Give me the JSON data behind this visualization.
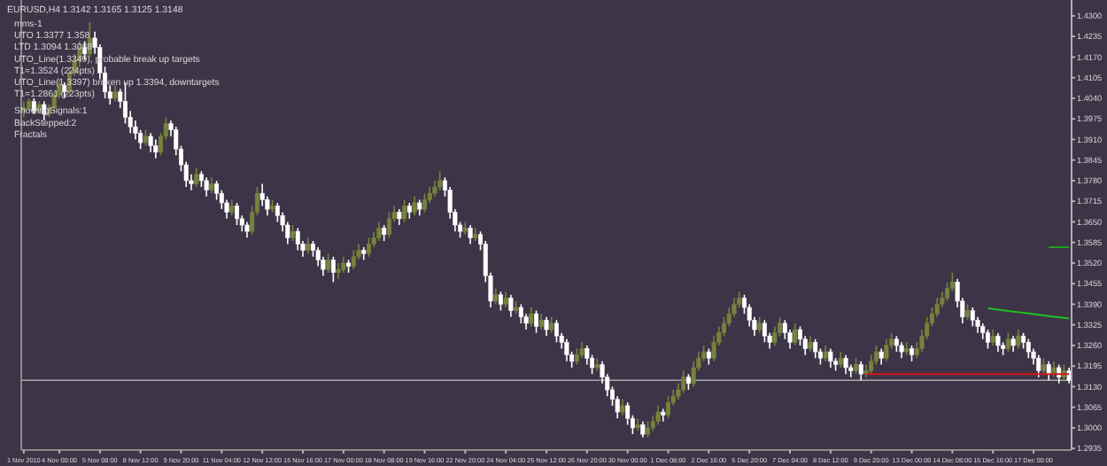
{
  "chart_data": {
    "type": "candlestick",
    "title": "EURUSD,H4 1.3142 1.3165 1.3125 1.3148",
    "annotations": [
      "mms-1",
      "UTO 1.3377 1.358",
      "LTD 1.3094 1.3088",
      "UTO_Line(1.3349), probable break up targets",
      "T1=1.3524 (224pts)",
      "UTO_Line(1.3397) broken up 1.3394, downtargets",
      "T1=1.2861 (223pts)",
      "ShowingSignals:1",
      "BackStepped:2",
      "Fractals"
    ],
    "categories": [
      "1 Nov 2010",
      null,
      null,
      null,
      null,
      null,
      null,
      "4 Nov 00:00",
      null,
      null,
      null,
      null,
      null,
      null,
      null,
      "5 Nov 08:00",
      null,
      null,
      null,
      null,
      null,
      null,
      null,
      "8 Nov 12:00",
      null,
      null,
      null,
      null,
      null,
      null,
      null,
      "9 Nov 20:00",
      null,
      null,
      null,
      null,
      null,
      null,
      null,
      "11 Nov 04:00",
      null,
      null,
      null,
      null,
      null,
      null,
      null,
      "12 Nov 12:00",
      null,
      null,
      null,
      null,
      null,
      null,
      null,
      "15 Nov 16:00",
      null,
      null,
      null,
      null,
      null,
      null,
      null,
      "17 Nov 00:00",
      null,
      null,
      null,
      null,
      null,
      null,
      null,
      "18 Nov 08:00",
      null,
      null,
      null,
      null,
      null,
      null,
      null,
      "19 Nov 16:00",
      null,
      null,
      null,
      null,
      null,
      null,
      null,
      "22 Nov 20:00",
      null,
      null,
      null,
      null,
      null,
      null,
      null,
      "24 Nov 04:00",
      null,
      null,
      null,
      null,
      null,
      null,
      null,
      "25 Nov 12:00",
      null,
      null,
      null,
      null,
      null,
      null,
      null,
      "26 Nov 20:00",
      null,
      null,
      null,
      null,
      null,
      null,
      null,
      "30 Nov 00:00",
      null,
      null,
      null,
      null,
      null,
      null,
      null,
      "1 Dec 08:00",
      null,
      null,
      null,
      null,
      null,
      null,
      null,
      "2 Dec 16:00",
      null,
      null,
      null,
      null,
      null,
      null,
      null,
      "5 Dec 20:00",
      null,
      null,
      null,
      null,
      null,
      null,
      null,
      "7 Dec 04:00",
      null,
      null,
      null,
      null,
      null,
      null,
      null,
      "8 Dec 12:00",
      null,
      null,
      null,
      null,
      null,
      null,
      null,
      "9 Dec 20:00",
      null,
      null,
      null,
      null,
      null,
      null,
      null,
      "13 Dec 00:00",
      null,
      null,
      null,
      null,
      null,
      null,
      null,
      "14 Dec 08:00",
      null,
      null,
      null,
      null,
      null,
      null,
      null,
      "15 Dec 16:00",
      null,
      null,
      null,
      null,
      null,
      null,
      null,
      "17 Dec 00:00",
      null,
      null,
      null,
      null,
      null,
      null,
      null
    ],
    "ohlc": [
      [
        1.4,
        1.403,
        1.398,
        1.401
      ],
      [
        1.401,
        1.404,
        1.4,
        1.403
      ],
      [
        1.403,
        1.404,
        1.399,
        1.4
      ],
      [
        1.4,
        1.403,
        1.399,
        1.402
      ],
      [
        1.402,
        1.403,
        1.397,
        1.399
      ],
      [
        1.399,
        1.402,
        1.398,
        1.401
      ],
      [
        1.401,
        1.406,
        1.4,
        1.405
      ],
      [
        1.405,
        1.41,
        1.404,
        1.408
      ],
      [
        1.408,
        1.409,
        1.404,
        1.406
      ],
      [
        1.406,
        1.414,
        1.405,
        1.412
      ],
      [
        1.412,
        1.418,
        1.411,
        1.416
      ],
      [
        1.416,
        1.422,
        1.414,
        1.42
      ],
      [
        1.42,
        1.422,
        1.416,
        1.418
      ],
      [
        1.418,
        1.428,
        1.417,
        1.423
      ],
      [
        1.423,
        1.425,
        1.418,
        1.42
      ],
      [
        1.42,
        1.421,
        1.41,
        1.412
      ],
      [
        1.412,
        1.414,
        1.404,
        1.406
      ],
      [
        1.406,
        1.408,
        1.402,
        1.404
      ],
      [
        1.404,
        1.408,
        1.403,
        1.406
      ],
      [
        1.406,
        1.407,
        1.401,
        1.403
      ],
      [
        1.403,
        1.409,
        1.396,
        1.398
      ],
      [
        1.398,
        1.4,
        1.393,
        1.395
      ],
      [
        1.395,
        1.397,
        1.391,
        1.393
      ],
      [
        1.393,
        1.394,
        1.388,
        1.39
      ],
      [
        1.39,
        1.394,
        1.389,
        1.392
      ],
      [
        1.392,
        1.393,
        1.387,
        1.389
      ],
      [
        1.389,
        1.391,
        1.385,
        1.387
      ],
      [
        1.387,
        1.393,
        1.386,
        1.392
      ],
      [
        1.392,
        1.398,
        1.391,
        1.396
      ],
      [
        1.396,
        1.397,
        1.392,
        1.394
      ],
      [
        1.394,
        1.395,
        1.386,
        1.388
      ],
      [
        1.388,
        1.389,
        1.381,
        1.383
      ],
      [
        1.383,
        1.384,
        1.376,
        1.378
      ],
      [
        1.378,
        1.38,
        1.375,
        1.377
      ],
      [
        1.377,
        1.382,
        1.376,
        1.38
      ],
      [
        1.38,
        1.381,
        1.376,
        1.378
      ],
      [
        1.378,
        1.379,
        1.373,
        1.375
      ],
      [
        1.375,
        1.379,
        1.374,
        1.377
      ],
      [
        1.377,
        1.378,
        1.372,
        1.374
      ],
      [
        1.374,
        1.375,
        1.369,
        1.371
      ],
      [
        1.371,
        1.372,
        1.366,
        1.368
      ],
      [
        1.368,
        1.372,
        1.367,
        1.37
      ],
      [
        1.37,
        1.371,
        1.364,
        1.366
      ],
      [
        1.366,
        1.367,
        1.362,
        1.364
      ],
      [
        1.364,
        1.365,
        1.36,
        1.362
      ],
      [
        1.362,
        1.37,
        1.361,
        1.368
      ],
      [
        1.368,
        1.376,
        1.367,
        1.374
      ],
      [
        1.374,
        1.377,
        1.37,
        1.372
      ],
      [
        1.372,
        1.373,
        1.367,
        1.369
      ],
      [
        1.369,
        1.372,
        1.368,
        1.37
      ],
      [
        1.37,
        1.371,
        1.365,
        1.367
      ],
      [
        1.367,
        1.368,
        1.362,
        1.364
      ],
      [
        1.364,
        1.365,
        1.358,
        1.36
      ],
      [
        1.36,
        1.364,
        1.359,
        1.362
      ],
      [
        1.362,
        1.363,
        1.356,
        1.358
      ],
      [
        1.358,
        1.359,
        1.354,
        1.356
      ],
      [
        1.356,
        1.36,
        1.355,
        1.358
      ],
      [
        1.358,
        1.359,
        1.354,
        1.356
      ],
      [
        1.356,
        1.357,
        1.351,
        1.353
      ],
      [
        1.353,
        1.354,
        1.348,
        1.35
      ],
      [
        1.35,
        1.355,
        1.349,
        1.353
      ],
      [
        1.353,
        1.354,
        1.346,
        1.349
      ],
      [
        1.349,
        1.352,
        1.347,
        1.35
      ],
      [
        1.35,
        1.354,
        1.349,
        1.352
      ],
      [
        1.352,
        1.353,
        1.349,
        1.351
      ],
      [
        1.351,
        1.356,
        1.35,
        1.354
      ],
      [
        1.354,
        1.358,
        1.353,
        1.356
      ],
      [
        1.356,
        1.357,
        1.353,
        1.355
      ],
      [
        1.355,
        1.36,
        1.354,
        1.358
      ],
      [
        1.358,
        1.362,
        1.357,
        1.36
      ],
      [
        1.36,
        1.365,
        1.359,
        1.363
      ],
      [
        1.363,
        1.364,
        1.359,
        1.361
      ],
      [
        1.361,
        1.368,
        1.36,
        1.366
      ],
      [
        1.366,
        1.37,
        1.365,
        1.368
      ],
      [
        1.368,
        1.369,
        1.364,
        1.366
      ],
      [
        1.366,
        1.372,
        1.365,
        1.37
      ],
      [
        1.37,
        1.371,
        1.366,
        1.368
      ],
      [
        1.368,
        1.373,
        1.367,
        1.371
      ],
      [
        1.371,
        1.372,
        1.367,
        1.369
      ],
      [
        1.369,
        1.374,
        1.368,
        1.372
      ],
      [
        1.372,
        1.376,
        1.371,
        1.374
      ],
      [
        1.374,
        1.378,
        1.373,
        1.376
      ],
      [
        1.376,
        1.381,
        1.375,
        1.378
      ],
      [
        1.378,
        1.379,
        1.373,
        1.375
      ],
      [
        1.375,
        1.376,
        1.366,
        1.368
      ],
      [
        1.368,
        1.369,
        1.362,
        1.364
      ],
      [
        1.364,
        1.365,
        1.36,
        1.362
      ],
      [
        1.362,
        1.365,
        1.361,
        1.363
      ],
      [
        1.363,
        1.364,
        1.358,
        1.36
      ],
      [
        1.36,
        1.363,
        1.359,
        1.361
      ],
      [
        1.361,
        1.362,
        1.356,
        1.358
      ],
      [
        1.358,
        1.359,
        1.346,
        1.348
      ],
      [
        1.348,
        1.349,
        1.338,
        1.34
      ],
      [
        1.34,
        1.344,
        1.339,
        1.342
      ],
      [
        1.342,
        1.343,
        1.337,
        1.339
      ],
      [
        1.339,
        1.343,
        1.338,
        1.341
      ],
      [
        1.341,
        1.342,
        1.335,
        1.337
      ],
      [
        1.337,
        1.34,
        1.336,
        1.338
      ],
      [
        1.338,
        1.339,
        1.333,
        1.335
      ],
      [
        1.335,
        1.336,
        1.331,
        1.333
      ],
      [
        1.333,
        1.338,
        1.332,
        1.336
      ],
      [
        1.336,
        1.337,
        1.33,
        1.332
      ],
      [
        1.332,
        1.336,
        1.331,
        1.334
      ],
      [
        1.334,
        1.335,
        1.329,
        1.331
      ],
      [
        1.331,
        1.335,
        1.33,
        1.333
      ],
      [
        1.333,
        1.334,
        1.327,
        1.329
      ],
      [
        1.329,
        1.33,
        1.325,
        1.327
      ],
      [
        1.327,
        1.328,
        1.321,
        1.323
      ],
      [
        1.323,
        1.324,
        1.319,
        1.321
      ],
      [
        1.321,
        1.325,
        1.32,
        1.323
      ],
      [
        1.323,
        1.327,
        1.322,
        1.325
      ],
      [
        1.325,
        1.326,
        1.32,
        1.322
      ],
      [
        1.322,
        1.323,
        1.317,
        1.319
      ],
      [
        1.319,
        1.322,
        1.318,
        1.32
      ],
      [
        1.32,
        1.321,
        1.314,
        1.316
      ],
      [
        1.316,
        1.317,
        1.31,
        1.312
      ],
      [
        1.312,
        1.313,
        1.307,
        1.309
      ],
      [
        1.309,
        1.31,
        1.303,
        1.305
      ],
      [
        1.305,
        1.309,
        1.304,
        1.307
      ],
      [
        1.307,
        1.308,
        1.301,
        1.303
      ],
      [
        1.303,
        1.304,
        1.298,
        1.3
      ],
      [
        1.3,
        1.303,
        1.299,
        1.301
      ],
      [
        1.301,
        1.302,
        1.297,
        1.298
      ],
      [
        1.298,
        1.302,
        1.297,
        1.3
      ],
      [
        1.3,
        1.304,
        1.299,
        1.302
      ],
      [
        1.302,
        1.307,
        1.301,
        1.305
      ],
      [
        1.305,
        1.306,
        1.302,
        1.304
      ],
      [
        1.304,
        1.31,
        1.303,
        1.308
      ],
      [
        1.308,
        1.312,
        1.307,
        1.31
      ],
      [
        1.31,
        1.314,
        1.309,
        1.312
      ],
      [
        1.312,
        1.318,
        1.311,
        1.316
      ],
      [
        1.316,
        1.317,
        1.312,
        1.314
      ],
      [
        1.314,
        1.321,
        1.313,
        1.319
      ],
      [
        1.319,
        1.324,
        1.318,
        1.322
      ],
      [
        1.322,
        1.326,
        1.321,
        1.324
      ],
      [
        1.324,
        1.325,
        1.32,
        1.322
      ],
      [
        1.322,
        1.329,
        1.321,
        1.327
      ],
      [
        1.327,
        1.332,
        1.326,
        1.33
      ],
      [
        1.33,
        1.335,
        1.329,
        1.333
      ],
      [
        1.333,
        1.338,
        1.332,
        1.336
      ],
      [
        1.336,
        1.341,
        1.335,
        1.339
      ],
      [
        1.339,
        1.343,
        1.338,
        1.341
      ],
      [
        1.341,
        1.342,
        1.336,
        1.338
      ],
      [
        1.338,
        1.339,
        1.332,
        1.334
      ],
      [
        1.334,
        1.335,
        1.329,
        1.331
      ],
      [
        1.331,
        1.335,
        1.33,
        1.333
      ],
      [
        1.333,
        1.334,
        1.327,
        1.329
      ],
      [
        1.329,
        1.33,
        1.325,
        1.327
      ],
      [
        1.327,
        1.332,
        1.326,
        1.33
      ],
      [
        1.33,
        1.335,
        1.329,
        1.333
      ],
      [
        1.333,
        1.334,
        1.328,
        1.33
      ],
      [
        1.33,
        1.331,
        1.325,
        1.327
      ],
      [
        1.327,
        1.333,
        1.326,
        1.331
      ],
      [
        1.331,
        1.332,
        1.326,
        1.328
      ],
      [
        1.328,
        1.329,
        1.323,
        1.325
      ],
      [
        1.325,
        1.329,
        1.324,
        1.327
      ],
      [
        1.327,
        1.328,
        1.322,
        1.324
      ],
      [
        1.324,
        1.325,
        1.32,
        1.322
      ],
      [
        1.322,
        1.326,
        1.321,
        1.324
      ],
      [
        1.324,
        1.325,
        1.319,
        1.321
      ],
      [
        1.321,
        1.322,
        1.318,
        1.32
      ],
      [
        1.32,
        1.324,
        1.319,
        1.322
      ],
      [
        1.322,
        1.323,
        1.317,
        1.319
      ],
      [
        1.319,
        1.32,
        1.316,
        1.318
      ],
      [
        1.318,
        1.322,
        1.317,
        1.32
      ],
      [
        1.32,
        1.321,
        1.315,
        1.317
      ],
      [
        1.317,
        1.32,
        1.316,
        1.318
      ],
      [
        1.318,
        1.323,
        1.317,
        1.321
      ],
      [
        1.321,
        1.326,
        1.32,
        1.324
      ],
      [
        1.324,
        1.325,
        1.32,
        1.322
      ],
      [
        1.322,
        1.328,
        1.321,
        1.326
      ],
      [
        1.326,
        1.33,
        1.325,
        1.328
      ],
      [
        1.328,
        1.329,
        1.324,
        1.326
      ],
      [
        1.326,
        1.327,
        1.322,
        1.324
      ],
      [
        1.324,
        1.327,
        1.323,
        1.325
      ],
      [
        1.325,
        1.326,
        1.321,
        1.323
      ],
      [
        1.323,
        1.327,
        1.322,
        1.325
      ],
      [
        1.325,
        1.331,
        1.324,
        1.329
      ],
      [
        1.329,
        1.335,
        1.328,
        1.333
      ],
      [
        1.333,
        1.338,
        1.332,
        1.336
      ],
      [
        1.336,
        1.341,
        1.335,
        1.339
      ],
      [
        1.339,
        1.343,
        1.338,
        1.341
      ],
      [
        1.341,
        1.346,
        1.34,
        1.344
      ],
      [
        1.344,
        1.349,
        1.343,
        1.346
      ],
      [
        1.346,
        1.347,
        1.338,
        1.34
      ],
      [
        1.34,
        1.341,
        1.333,
        1.335
      ],
      [
        1.335,
        1.339,
        1.334,
        1.337
      ],
      [
        1.337,
        1.338,
        1.332,
        1.334
      ],
      [
        1.334,
        1.335,
        1.33,
        1.332
      ],
      [
        1.332,
        1.333,
        1.328,
        1.33
      ],
      [
        1.33,
        1.331,
        1.325,
        1.327
      ],
      [
        1.327,
        1.331,
        1.326,
        1.329
      ],
      [
        1.329,
        1.33,
        1.324,
        1.326
      ],
      [
        1.326,
        1.327,
        1.323,
        1.325
      ],
      [
        1.325,
        1.33,
        1.324,
        1.328
      ],
      [
        1.328,
        1.329,
        1.324,
        1.326
      ],
      [
        1.326,
        1.331,
        1.325,
        1.329
      ],
      [
        1.329,
        1.33,
        1.325,
        1.327
      ],
      [
        1.327,
        1.328,
        1.322,
        1.324
      ],
      [
        1.324,
        1.325,
        1.32,
        1.322
      ],
      [
        1.322,
        1.323,
        1.316,
        1.318
      ],
      [
        1.318,
        1.322,
        1.317,
        1.32
      ],
      [
        1.32,
        1.321,
        1.315,
        1.317
      ],
      [
        1.317,
        1.321,
        1.316,
        1.319
      ],
      [
        1.319,
        1.32,
        1.314,
        1.316
      ],
      [
        1.316,
        1.32,
        1.315,
        1.318
      ],
      [
        1.318,
        1.319,
        1.314,
        1.315
      ]
    ],
    "series": [
      {
        "type": "line",
        "color": "#d01818",
        "values": [
          null,
          null,
          null,
          null,
          null,
          null,
          null,
          null,
          null,
          null,
          null,
          null,
          null,
          null,
          null,
          null,
          null,
          null,
          null,
          null,
          null,
          null,
          null,
          null,
          null,
          null,
          null,
          null,
          null,
          null,
          null,
          null,
          null,
          null,
          null,
          null,
          null,
          null,
          null,
          null,
          null,
          null,
          null,
          null,
          null,
          null,
          null,
          null,
          null,
          null,
          null,
          null,
          null,
          null,
          null,
          null,
          null,
          null,
          null,
          null,
          null,
          null,
          null,
          null,
          null,
          null,
          null,
          null,
          null,
          null,
          null,
          null,
          null,
          null,
          null,
          null,
          null,
          null,
          null,
          null,
          null,
          null,
          null,
          null,
          null,
          null,
          null,
          null,
          null,
          null,
          null,
          null,
          null,
          null,
          null,
          null,
          null,
          null,
          null,
          null,
          null,
          null,
          null,
          null,
          null,
          null,
          null,
          null,
          null,
          null,
          null,
          null,
          null,
          null,
          null,
          null,
          null,
          null,
          null,
          null,
          null,
          null,
          null,
          null,
          null,
          null,
          null,
          null,
          null,
          null,
          null,
          null,
          null,
          null,
          null,
          null,
          null,
          null,
          null,
          null,
          null,
          null,
          null,
          null,
          null,
          null,
          null,
          null,
          null,
          null,
          null,
          null,
          null,
          null,
          null,
          null,
          null,
          null,
          null,
          null,
          null,
          null,
          null,
          null,
          null,
          null,
          1.317,
          1.317,
          1.317,
          1.317,
          1.317,
          1.317,
          1.317,
          1.317,
          1.317,
          1.317,
          1.317,
          1.317,
          1.317,
          1.317,
          1.317,
          1.317,
          1.317,
          1.317,
          1.317,
          1.317,
          1.317,
          1.317,
          1.317,
          1.317,
          1.317,
          1.317,
          1.317,
          1.317,
          1.317,
          1.317,
          1.317,
          1.317,
          1.317,
          1.317,
          1.317,
          1.317,
          1.317,
          1.317,
          1.317,
          1.317,
          1.317
        ]
      },
      {
        "type": "line",
        "color": "#20c020",
        "values": [
          null,
          null,
          null,
          null,
          null,
          null,
          null,
          null,
          null,
          null,
          null,
          null,
          null,
          null,
          null,
          null,
          null,
          null,
          null,
          null,
          null,
          null,
          null,
          null,
          null,
          null,
          null,
          null,
          null,
          null,
          null,
          null,
          null,
          null,
          null,
          null,
          null,
          null,
          null,
          null,
          null,
          null,
          null,
          null,
          null,
          null,
          null,
          null,
          null,
          null,
          null,
          null,
          null,
          null,
          null,
          null,
          null,
          null,
          null,
          null,
          null,
          null,
          null,
          null,
          null,
          null,
          null,
          null,
          null,
          null,
          null,
          null,
          null,
          null,
          null,
          null,
          null,
          null,
          null,
          null,
          null,
          null,
          null,
          null,
          null,
          null,
          null,
          null,
          null,
          null,
          null,
          null,
          null,
          null,
          null,
          null,
          null,
          null,
          null,
          null,
          null,
          null,
          null,
          null,
          null,
          null,
          null,
          null,
          null,
          null,
          null,
          null,
          null,
          null,
          null,
          null,
          null,
          null,
          null,
          null,
          null,
          null,
          null,
          null,
          null,
          null,
          null,
          null,
          null,
          null,
          null,
          null,
          null,
          null,
          null,
          null,
          null,
          null,
          null,
          null,
          null,
          null,
          null,
          null,
          null,
          null,
          null,
          null,
          null,
          null,
          null,
          null,
          null,
          null,
          null,
          null,
          null,
          null,
          null,
          null,
          null,
          null,
          null,
          null,
          null,
          null,
          null,
          null,
          null,
          null,
          null,
          null,
          null,
          null,
          null,
          null,
          null,
          null,
          null,
          null,
          null,
          null,
          null,
          null,
          null,
          null,
          null,
          null,
          null,
          null,
          1.3377,
          1.3375,
          1.3373,
          1.3371,
          1.3369,
          1.3367,
          1.3365,
          1.3363,
          1.3361,
          1.3359,
          1.3357,
          1.3355,
          1.3353,
          1.3351,
          1.3349,
          1.3347,
          1.3345
        ]
      },
      {
        "type": "line",
        "color": "#20a020",
        "values": [
          null,
          null,
          null,
          null,
          null,
          null,
          null,
          null,
          null,
          null,
          null,
          null,
          null,
          null,
          null,
          null,
          null,
          null,
          null,
          null,
          null,
          null,
          null,
          null,
          null,
          null,
          null,
          null,
          null,
          null,
          null,
          null,
          null,
          null,
          null,
          null,
          null,
          null,
          null,
          null,
          null,
          null,
          null,
          null,
          null,
          null,
          null,
          null,
          null,
          null,
          null,
          null,
          null,
          null,
          null,
          null,
          null,
          null,
          null,
          null,
          null,
          null,
          null,
          null,
          null,
          null,
          null,
          null,
          null,
          null,
          null,
          null,
          null,
          null,
          null,
          null,
          null,
          null,
          null,
          null,
          null,
          null,
          null,
          null,
          null,
          null,
          null,
          null,
          null,
          null,
          null,
          null,
          null,
          null,
          null,
          null,
          null,
          null,
          null,
          null,
          null,
          null,
          null,
          null,
          null,
          null,
          null,
          null,
          null,
          null,
          null,
          null,
          null,
          null,
          null,
          null,
          null,
          null,
          null,
          null,
          null,
          null,
          null,
          null,
          null,
          null,
          null,
          null,
          null,
          null,
          null,
          null,
          null,
          null,
          null,
          null,
          null,
          null,
          null,
          null,
          null,
          null,
          null,
          null,
          null,
          null,
          null,
          null,
          null,
          null,
          null,
          null,
          null,
          null,
          null,
          null,
          null,
          null,
          null,
          null,
          null,
          null,
          null,
          null,
          null,
          null,
          null,
          null,
          null,
          null,
          null,
          null,
          null,
          null,
          null,
          null,
          null,
          null,
          null,
          null,
          null,
          null,
          null,
          null,
          null,
          null,
          null,
          null,
          null,
          null,
          null,
          null,
          null,
          null,
          null,
          null,
          null,
          null,
          null,
          null,
          null,
          null,
          1.357,
          1.357,
          1.357,
          1.357,
          1.357
        ]
      }
    ],
    "ref_lines": [
      {
        "axis": "y",
        "value": 1.315,
        "color": "#a8a8a8"
      }
    ],
    "ylim": [
      1.293,
      1.435
    ],
    "yticks": [
      {
        "value": 1.43,
        "label": "1.4300"
      },
      1.4235,
      {
        "value": 1.417,
        "label": "1.4170"
      },
      1.4105,
      {
        "value": 1.404,
        "label": "1.4040"
      },
      1.3975,
      {
        "value": 1.391,
        "label": "1.3910"
      },
      1.3845,
      {
        "value": 1.378,
        "label": "1.3780"
      },
      1.3715,
      {
        "value": 1.365,
        "label": "1.3650"
      },
      1.3585,
      {
        "value": 1.352,
        "label": "1.3520"
      },
      1.3455,
      {
        "value": 1.339,
        "label": "1.3390"
      },
      1.3325,
      {
        "value": 1.326,
        "label": "1.3260"
      },
      1.3195,
      {
        "value": 1.313,
        "label": "1.3130"
      },
      1.3065,
      {
        "value": 1.3,
        "label": "1.3000"
      },
      1.2935
    ],
    "grid": false,
    "legend": false
  }
}
